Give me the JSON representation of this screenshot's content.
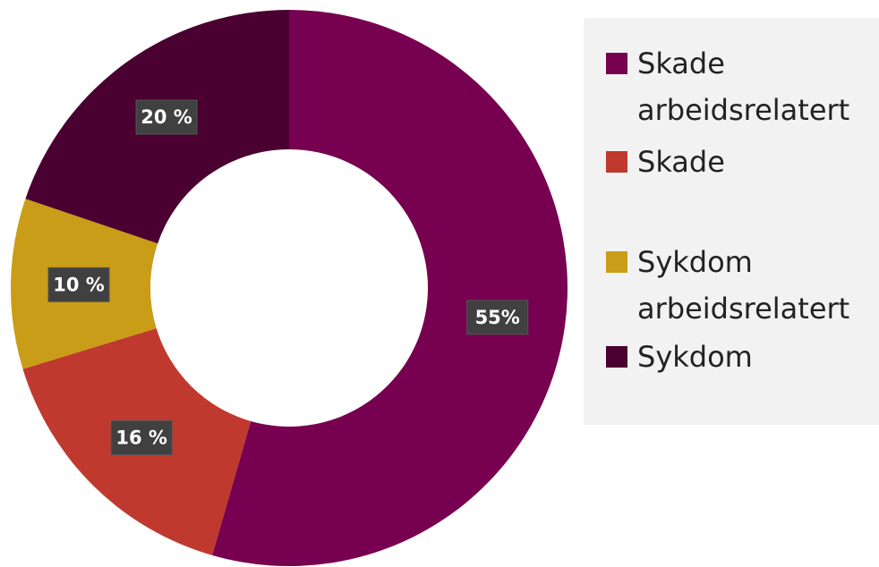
{
  "chart_data": {
    "type": "donut",
    "categories": [
      "Skade arbeidsrelatert",
      "Skade",
      "Sykdom arbeidsrelatert",
      "Sykdom"
    ],
    "values": [
      55,
      16,
      10,
      20
    ],
    "value_labels": [
      "55%",
      "16 %",
      "10 %",
      "20 %"
    ],
    "colors": [
      "#770050",
      "#c0392f",
      "#c99d17",
      "#4a0030"
    ],
    "legend": "right"
  }
}
